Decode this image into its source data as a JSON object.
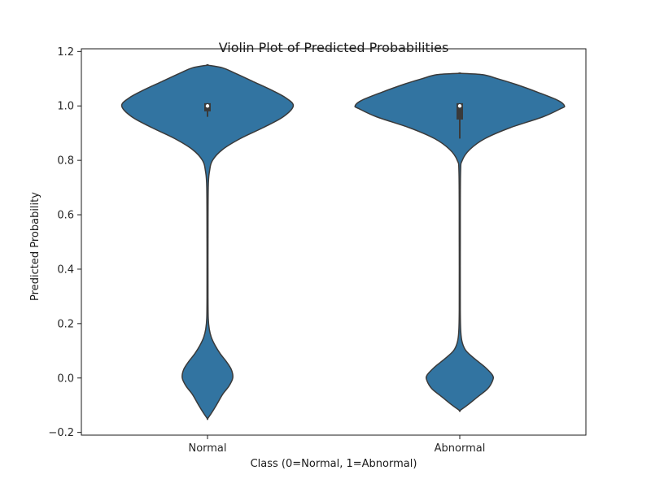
{
  "chart_data": {
    "type": "violin",
    "title": "Violin Plot of Predicted Probabilities",
    "xlabel": "Class (0=Normal, 1=Abnormal)",
    "ylabel": "Predicted Probability",
    "ylim": [
      -0.21,
      1.21
    ],
    "yticks": [
      -0.2,
      0.0,
      0.2,
      0.4,
      0.6,
      0.8,
      1.0,
      1.2
    ],
    "ytick_labels": [
      "−0.2",
      "0.0",
      "0.2",
      "0.4",
      "0.6",
      "0.8",
      "1.0",
      "1.2"
    ],
    "categories": [
      "Normal",
      "Abnormal"
    ],
    "grid": false,
    "violin_color": "#3274a1",
    "edge_color": "#3a3a3a",
    "violins": [
      {
        "category": "Normal",
        "range": [
          -0.15,
          1.15
        ],
        "max_half_width": 0.34,
        "box": {
          "q1": 0.98,
          "median": 1.0,
          "q3": 1.01,
          "whisker_low": 0.96,
          "whisker_high": 1.01
        },
        "profile": [
          [
            -0.15,
            0.0
          ],
          [
            -0.13,
            0.015
          ],
          [
            -0.1,
            0.035
          ],
          [
            -0.06,
            0.06
          ],
          [
            -0.03,
            0.085
          ],
          [
            0.0,
            0.1
          ],
          [
            0.03,
            0.095
          ],
          [
            0.06,
            0.075
          ],
          [
            0.09,
            0.05
          ],
          [
            0.12,
            0.03
          ],
          [
            0.15,
            0.015
          ],
          [
            0.18,
            0.007
          ],
          [
            0.22,
            0.003
          ],
          [
            0.3,
            0.002
          ],
          [
            0.5,
            0.002
          ],
          [
            0.7,
            0.003
          ],
          [
            0.76,
            0.008
          ],
          [
            0.8,
            0.02
          ],
          [
            0.84,
            0.06
          ],
          [
            0.88,
            0.13
          ],
          [
            0.92,
            0.22
          ],
          [
            0.96,
            0.3
          ],
          [
            1.0,
            0.34
          ],
          [
            1.03,
            0.31
          ],
          [
            1.06,
            0.25
          ],
          [
            1.09,
            0.18
          ],
          [
            1.12,
            0.11
          ],
          [
            1.14,
            0.06
          ],
          [
            1.15,
            0.0
          ]
        ]
      },
      {
        "category": "Abnormal",
        "range": [
          -0.12,
          1.12
        ],
        "max_half_width": 0.415,
        "box": {
          "q1": 0.95,
          "median": 1.0,
          "q3": 1.01,
          "whisker_low": 0.88,
          "whisker_high": 1.01
        },
        "profile": [
          [
            -0.12,
            0.0
          ],
          [
            -0.1,
            0.03
          ],
          [
            -0.07,
            0.07
          ],
          [
            -0.04,
            0.11
          ],
          [
            -0.01,
            0.13
          ],
          [
            0.01,
            0.13
          ],
          [
            0.04,
            0.1
          ],
          [
            0.07,
            0.06
          ],
          [
            0.1,
            0.025
          ],
          [
            0.13,
            0.01
          ],
          [
            0.17,
            0.004
          ],
          [
            0.25,
            0.002
          ],
          [
            0.5,
            0.002
          ],
          [
            0.75,
            0.003
          ],
          [
            0.8,
            0.01
          ],
          [
            0.84,
            0.04
          ],
          [
            0.88,
            0.1
          ],
          [
            0.92,
            0.2
          ],
          [
            0.96,
            0.33
          ],
          [
            0.99,
            0.4
          ],
          [
            1.0,
            0.415
          ],
          [
            1.02,
            0.39
          ],
          [
            1.05,
            0.31
          ],
          [
            1.08,
            0.22
          ],
          [
            1.1,
            0.15
          ],
          [
            1.115,
            0.09
          ],
          [
            1.12,
            0.0
          ]
        ]
      }
    ]
  }
}
